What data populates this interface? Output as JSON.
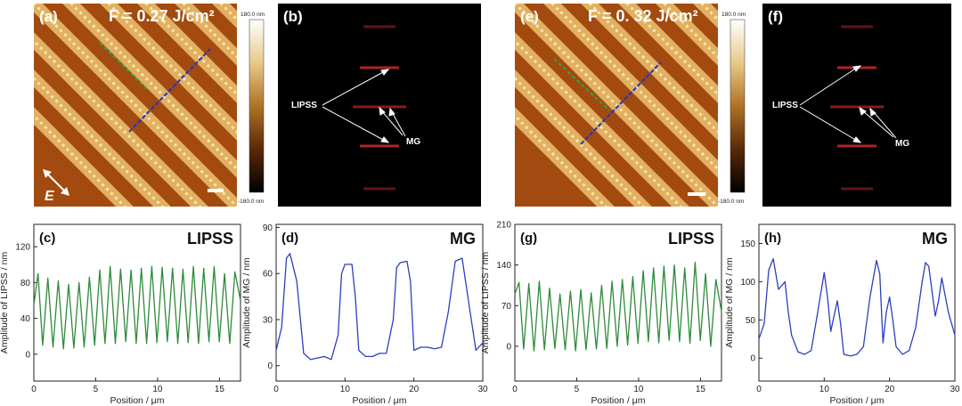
{
  "figure": {
    "panels": {
      "a": {
        "label": "(a)",
        "fluence_label": "F = 0.27 J/cm²"
      },
      "b": {
        "label": "(b)",
        "arrow_labels": [
          "LIPSS",
          "MG"
        ]
      },
      "e": {
        "label": "(e)",
        "fluence_label": "F = 0. 32 J/cm²"
      },
      "f": {
        "label": "(f)",
        "arrow_labels": [
          "LIPSS",
          "MG"
        ]
      }
    },
    "colorbar": {
      "top": "180.0 nm",
      "bottom": "-180.0 nm"
    },
    "e_field_label": "E"
  },
  "chart_data": [
    {
      "panel": "(c)",
      "type": "line",
      "title": "LIPSS",
      "xlabel": "Position / μm",
      "ylabel": "Amplitude of LIPSS / nm",
      "xlim": [
        0,
        16.7
      ],
      "ylim": [
        -30,
        145
      ],
      "xticks": [
        0,
        5,
        10,
        15
      ],
      "yticks": [
        0,
        40,
        80,
        120
      ],
      "series": [
        {
          "name": "LIPSS",
          "color": "#2e8b3a",
          "x": [
            0,
            0.34,
            0.71,
            1.13,
            1.55,
            1.97,
            2.39,
            2.81,
            3.23,
            3.65,
            4.07,
            4.49,
            4.91,
            5.33,
            5.75,
            6.17,
            6.59,
            7.01,
            7.43,
            7.85,
            8.27,
            8.69,
            9.11,
            9.53,
            9.95,
            10.37,
            10.79,
            11.21,
            11.63,
            12.05,
            12.47,
            12.89,
            13.31,
            13.73,
            14.15,
            14.57,
            14.99,
            15.41,
            15.83,
            16.25,
            16.7
          ],
          "y": [
            55,
            90,
            10,
            85,
            8,
            82,
            6,
            78,
            7,
            80,
            8,
            86,
            10,
            94,
            12,
            98,
            12,
            95,
            14,
            94,
            12,
            96,
            12,
            98,
            13,
            97,
            14,
            96,
            12,
            95,
            13,
            98,
            12,
            96,
            14,
            98,
            14,
            90,
            12,
            92,
            60
          ]
        }
      ]
    },
    {
      "panel": "(d)",
      "type": "line",
      "title": "MG",
      "xlabel": "Position / μm",
      "ylabel": "Amplitude of MG / nm",
      "xlim": [
        0,
        30
      ],
      "ylim": [
        -10,
        92
      ],
      "xticks": [
        0,
        10,
        20,
        30
      ],
      "yticks": [
        0,
        30,
        60,
        90
      ],
      "series": [
        {
          "name": "MG",
          "color": "#2b3fc0",
          "x": [
            0,
            0.8,
            1.5,
            2,
            3,
            4,
            5,
            6,
            7,
            8,
            9,
            9.5,
            10,
            11,
            11.5,
            12,
            13,
            14,
            15,
            16,
            17,
            17.5,
            18,
            19,
            19.5,
            20,
            21,
            22,
            23,
            24,
            25,
            26,
            27,
            28,
            29,
            30
          ],
          "y": [
            10,
            25,
            70,
            73,
            55,
            8,
            4,
            5,
            6,
            4,
            20,
            60,
            66,
            66,
            45,
            10,
            6,
            6,
            8,
            8,
            30,
            64,
            67,
            68,
            55,
            10,
            12,
            12,
            11,
            12,
            35,
            68,
            70,
            40,
            10,
            15
          ]
        }
      ]
    },
    {
      "panel": "(g)",
      "type": "line",
      "title": "LIPSS",
      "xlabel": "Position / μm",
      "ylabel": "Amplitude of LIPSS / nm",
      "xlim": [
        0,
        16.7
      ],
      "ylim": [
        -60,
        210
      ],
      "xticks": [
        0,
        5,
        10,
        15
      ],
      "yticks": [
        0,
        70,
        140,
        210
      ],
      "series": [
        {
          "name": "LIPSS",
          "color": "#2e8b3a",
          "x": [
            0,
            0.34,
            0.71,
            1.13,
            1.55,
            1.97,
            2.39,
            2.81,
            3.23,
            3.65,
            4.07,
            4.49,
            4.91,
            5.33,
            5.75,
            6.17,
            6.59,
            7.01,
            7.43,
            7.85,
            8.27,
            8.69,
            9.11,
            9.53,
            9.95,
            10.37,
            10.79,
            11.21,
            11.63,
            12.05,
            12.47,
            12.89,
            13.31,
            13.73,
            14.15,
            14.57,
            14.99,
            15.41,
            15.83,
            16.25,
            16.7
          ],
          "y": [
            90,
            110,
            -5,
            108,
            -8,
            112,
            -6,
            100,
            -4,
            90,
            -6,
            95,
            -8,
            98,
            -6,
            92,
            -5,
            105,
            -4,
            112,
            0,
            115,
            2,
            120,
            5,
            130,
            8,
            135,
            6,
            138,
            10,
            140,
            8,
            135,
            5,
            145,
            10,
            125,
            0,
            115,
            60
          ]
        }
      ]
    },
    {
      "panel": "(h)",
      "type": "line",
      "title": "MG",
      "xlabel": "Position / μm",
      "ylabel": "Amplitude of MG / nm",
      "xlim": [
        0,
        30
      ],
      "ylim": [
        -30,
        175
      ],
      "xticks": [
        0,
        10,
        20,
        30
      ],
      "yticks": [
        0,
        50,
        100,
        150
      ],
      "series": [
        {
          "name": "MG",
          "color": "#2b3fc0",
          "x": [
            0,
            0.8,
            1.5,
            2.2,
            3,
            3.5,
            4,
            4.5,
            5,
            6,
            7,
            8,
            9,
            10,
            10.5,
            11,
            11.5,
            12,
            12.5,
            13,
            14,
            15,
            16,
            17,
            18,
            18.5,
            19,
            19.5,
            20,
            20.5,
            21,
            22,
            23,
            24,
            25,
            25.5,
            26,
            27,
            27.5,
            28,
            29,
            30
          ],
          "y": [
            25,
            45,
            115,
            130,
            90,
            95,
            100,
            60,
            30,
            8,
            5,
            10,
            60,
            112,
            80,
            35,
            55,
            75,
            45,
            5,
            3,
            5,
            15,
            80,
            128,
            110,
            20,
            60,
            80,
            50,
            15,
            5,
            10,
            40,
            100,
            125,
            120,
            55,
            75,
            105,
            60,
            30
          ]
        }
      ]
    }
  ]
}
